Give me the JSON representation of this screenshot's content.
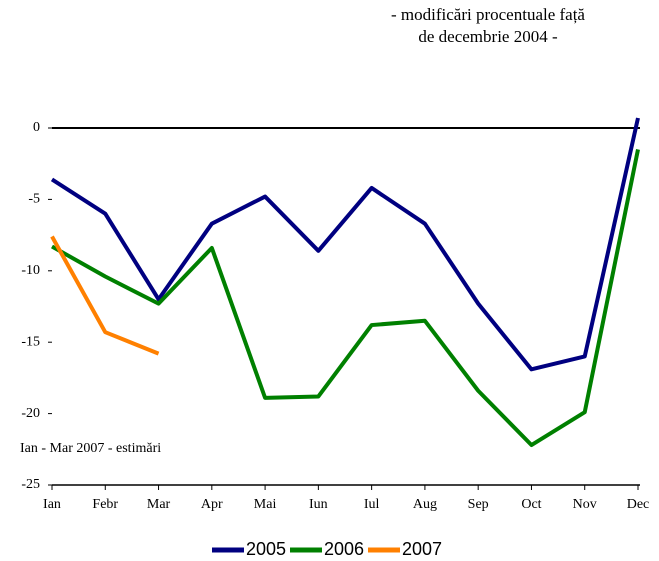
{
  "chart_data": {
    "type": "line",
    "title_lines": [
      "- modificări procentuale față",
      "de decembrie 2004 -"
    ],
    "annotation": "Ian - Mar 2007 - estimări",
    "categories": [
      "Ian",
      "Febr",
      "Mar",
      "Apr",
      "Mai",
      "Iun",
      "Iul",
      "Aug",
      "Sep",
      "Oct",
      "Nov",
      "Dec"
    ],
    "series": [
      {
        "name": "2005",
        "color": "#000080",
        "values": [
          -3.6,
          -6.0,
          -12.0,
          -6.7,
          -4.8,
          -8.6,
          -4.2,
          -6.7,
          -12.3,
          -16.9,
          -16.0,
          0.7
        ]
      },
      {
        "name": "2006",
        "color": "#008000",
        "values": [
          -8.3,
          -10.4,
          -12.3,
          -8.4,
          -18.9,
          -18.8,
          -13.8,
          -13.5,
          -18.4,
          -22.2,
          -19.9,
          -1.5
        ]
      },
      {
        "name": "2007",
        "color": "#ff8000",
        "values": [
          -7.6,
          -14.3,
          -15.8,
          null,
          null,
          null,
          null,
          null,
          null,
          null,
          null,
          null
        ]
      }
    ],
    "ylim": [
      -25,
      0.7
    ],
    "yticks": [
      -25,
      -20,
      -15,
      -10,
      -5,
      0
    ],
    "legend": "bottom"
  }
}
